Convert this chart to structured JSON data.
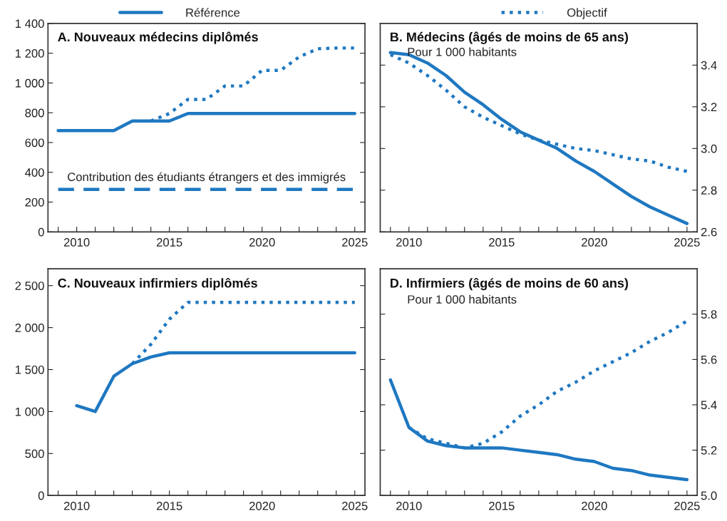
{
  "chart_data": [
    {
      "type": "line",
      "title": "A. Nouveaux médecins diplômés",
      "legend": "top",
      "xlim": [
        2008.45,
        2025.55
      ],
      "ylim": [
        0,
        1400
      ],
      "xticks": [
        {
          "value": 2009,
          "label": null
        },
        2010,
        {
          "value": 2011,
          "label": null
        },
        {
          "value": 2012,
          "label": null
        },
        {
          "value": 2013,
          "label": null
        },
        {
          "value": 2014,
          "label": null
        },
        2015,
        {
          "value": 2016,
          "label": null
        },
        {
          "value": 2017,
          "label": null
        },
        {
          "value": 2018,
          "label": null
        },
        {
          "value": 2019,
          "label": null
        },
        2020,
        {
          "value": 2021,
          "label": null
        },
        {
          "value": 2022,
          "label": null
        },
        {
          "value": 2023,
          "label": null
        },
        {
          "value": 2024,
          "label": null
        },
        2025
      ],
      "yticks": [
        0,
        200,
        400,
        600,
        800,
        {
          "value": 1000,
          "label": "1 000"
        },
        {
          "value": 1200,
          "label": "1 200"
        },
        {
          "value": 1400,
          "label": "1 400"
        }
      ],
      "annotations": [
        {
          "text": "Contribution des étudiants étrangers et des immigrés",
          "x": 2017,
          "y": 285
        }
      ],
      "series": [
        {
          "name": "Référence",
          "color": "#1f78c1",
          "line_style": "solid",
          "x": [
            2009,
            2010,
            2011,
            2012,
            2013,
            2014,
            2015,
            2016,
            2017,
            2018,
            2019,
            2020,
            2021,
            2022,
            2023,
            2024,
            2025
          ],
          "values": [
            680,
            680,
            680,
            680,
            745,
            745,
            745,
            795,
            795,
            795,
            795,
            795,
            795,
            795,
            795,
            795,
            795
          ]
        },
        {
          "name": "Objectif",
          "color": "#1f78c1",
          "line_style": "dotted",
          "x": [
            2014,
            2015,
            2016,
            2017,
            2018,
            2019,
            2020,
            2021,
            2022,
            2023,
            2024,
            2025
          ],
          "values": [
            745,
            795,
            890,
            890,
            980,
            980,
            1085,
            1085,
            1175,
            1230,
            1235,
            1235
          ]
        },
        {
          "color": "#1f78c1",
          "line_style": "dashed",
          "x": [
            2009,
            2010,
            2011,
            2012,
            2013,
            2014,
            2015,
            2016,
            2017,
            2018,
            2019,
            2020,
            2021,
            2022,
            2023,
            2024,
            2025
          ],
          "values": [
            285,
            285,
            285,
            285,
            285,
            285,
            285,
            285,
            285,
            285,
            285,
            285,
            285,
            285,
            285,
            285,
            285
          ]
        }
      ]
    },
    {
      "type": "line",
      "title": "B. Médecins (âgés de moins de 65 ans)",
      "subtitle": "Pour 1 000 habitants",
      "xlim": [
        2008.45,
        2025.55
      ],
      "ylim": [
        2.6,
        3.6
      ],
      "xticks": [
        {
          "value": 2009,
          "label": null
        },
        2010,
        {
          "value": 2011,
          "label": null
        },
        {
          "value": 2012,
          "label": null
        },
        {
          "value": 2013,
          "label": null
        },
        {
          "value": 2014,
          "label": null
        },
        2015,
        {
          "value": 2016,
          "label": null
        },
        {
          "value": 2017,
          "label": null
        },
        {
          "value": 2018,
          "label": null
        },
        {
          "value": 2019,
          "label": null
        },
        2020,
        {
          "value": 2021,
          "label": null
        },
        {
          "value": 2022,
          "label": null
        },
        {
          "value": 2023,
          "label": null
        },
        {
          "value": 2024,
          "label": null
        },
        2025
      ],
      "yticks": [
        {
          "value": 2.6,
          "label": "2.6"
        },
        {
          "value": 2.8,
          "label": "2.8"
        },
        {
          "value": 3.0,
          "label": "3.0"
        },
        {
          "value": 3.2,
          "label": "3.2"
        },
        {
          "value": 3.4,
          "label": "3.4"
        }
      ],
      "series": [
        {
          "color": "#1f78c1",
          "line_style": "solid",
          "x": [
            2009,
            2010,
            2011,
            2012,
            2013,
            2014,
            2015,
            2016,
            2017,
            2018,
            2019,
            2020,
            2021,
            2022,
            2023,
            2024,
            2025
          ],
          "values": [
            3.46,
            3.45,
            3.41,
            3.35,
            3.27,
            3.21,
            3.14,
            3.08,
            3.04,
            3.0,
            2.94,
            2.89,
            2.83,
            2.77,
            2.72,
            2.68,
            2.64
          ]
        },
        {
          "color": "#1f78c1",
          "line_style": "dotted",
          "x": [
            2009,
            2010,
            2011,
            2012,
            2013,
            2014,
            2015,
            2016,
            2017,
            2018,
            2019,
            2020,
            2021,
            2022,
            2023,
            2024,
            2025
          ],
          "values": [
            3.45,
            3.41,
            3.35,
            3.28,
            3.2,
            3.15,
            3.11,
            3.07,
            3.04,
            3.02,
            3.0,
            2.99,
            2.97,
            2.95,
            2.94,
            2.91,
            2.89
          ]
        }
      ]
    },
    {
      "type": "line",
      "title": "C. Nouveaux infirmiers diplômés",
      "xlim": [
        2008.45,
        2025.55
      ],
      "ylim": [
        0,
        2700
      ],
      "xticks": [
        {
          "value": 2009,
          "label": null
        },
        2010,
        {
          "value": 2011,
          "label": null
        },
        {
          "value": 2012,
          "label": null
        },
        {
          "value": 2013,
          "label": null
        },
        {
          "value": 2014,
          "label": null
        },
        2015,
        {
          "value": 2016,
          "label": null
        },
        {
          "value": 2017,
          "label": null
        },
        {
          "value": 2018,
          "label": null
        },
        {
          "value": 2019,
          "label": null
        },
        2020,
        {
          "value": 2021,
          "label": null
        },
        {
          "value": 2022,
          "label": null
        },
        {
          "value": 2023,
          "label": null
        },
        {
          "value": 2024,
          "label": null
        },
        2025
      ],
      "yticks": [
        0,
        500,
        {
          "value": 1000,
          "label": "1 000"
        },
        {
          "value": 1500,
          "label": "1 500"
        },
        {
          "value": 2000,
          "label": "2 000"
        },
        {
          "value": 2500,
          "label": "2 500"
        }
      ],
      "series": [
        {
          "color": "#1f78c1",
          "line_style": "solid",
          "x": [
            2010,
            2011,
            2012,
            2013,
            2014,
            2015,
            2016,
            2017,
            2018,
            2019,
            2020,
            2021,
            2022,
            2023,
            2024,
            2025
          ],
          "values": [
            1070,
            1000,
            1420,
            1570,
            1650,
            1700,
            1700,
            1700,
            1700,
            1700,
            1700,
            1700,
            1700,
            1700,
            1700,
            1700
          ]
        },
        {
          "color": "#1f78c1",
          "line_style": "dotted",
          "x": [
            2013,
            2014,
            2015,
            2016,
            2017,
            2018,
            2019,
            2020,
            2021,
            2022,
            2023,
            2024,
            2025
          ],
          "values": [
            1570,
            1800,
            2100,
            2300,
            2300,
            2300,
            2300,
            2300,
            2300,
            2300,
            2300,
            2300,
            2300
          ]
        }
      ]
    },
    {
      "type": "line",
      "title": "D. Infirmiers (âgés de moins de 60 ans)",
      "subtitle": "Pour 1 000 habitants",
      "xlim": [
        2008.45,
        2025.55
      ],
      "ylim": [
        5.0,
        6.0
      ],
      "xticks": [
        {
          "value": 2009,
          "label": null
        },
        2010,
        {
          "value": 2011,
          "label": null
        },
        {
          "value": 2012,
          "label": null
        },
        {
          "value": 2013,
          "label": null
        },
        {
          "value": 2014,
          "label": null
        },
        2015,
        {
          "value": 2016,
          "label": null
        },
        {
          "value": 2017,
          "label": null
        },
        {
          "value": 2018,
          "label": null
        },
        {
          "value": 2019,
          "label": null
        },
        2020,
        {
          "value": 2021,
          "label": null
        },
        {
          "value": 2022,
          "label": null
        },
        {
          "value": 2023,
          "label": null
        },
        {
          "value": 2024,
          "label": null
        },
        2025
      ],
      "yticks": [
        {
          "value": 5.0,
          "label": "5.0"
        },
        {
          "value": 5.2,
          "label": "5.2"
        },
        {
          "value": 5.4,
          "label": "5.4"
        },
        {
          "value": 5.6,
          "label": "5.6"
        },
        {
          "value": 5.8,
          "label": "5.8"
        }
      ],
      "series": [
        {
          "color": "#1f78c1",
          "line_style": "solid",
          "x": [
            2009,
            2010,
            2011,
            2012,
            2013,
            2014,
            2015,
            2016,
            2017,
            2018,
            2019,
            2020,
            2021,
            2022,
            2023,
            2024,
            2025
          ],
          "values": [
            5.51,
            5.3,
            5.24,
            5.22,
            5.21,
            5.21,
            5.21,
            5.2,
            5.19,
            5.18,
            5.16,
            5.15,
            5.12,
            5.11,
            5.09,
            5.08,
            5.07
          ]
        },
        {
          "color": "#1f78c1",
          "line_style": "dotted",
          "x": [
            2010,
            2011,
            2012,
            2013,
            2014,
            2015,
            2016,
            2017,
            2018,
            2019,
            2020,
            2021,
            2022,
            2023,
            2024,
            2025
          ],
          "values": [
            5.3,
            5.25,
            5.23,
            5.21,
            5.23,
            5.28,
            5.35,
            5.4,
            5.46,
            5.5,
            5.55,
            5.59,
            5.63,
            5.68,
            5.72,
            5.77
          ]
        }
      ]
    }
  ]
}
